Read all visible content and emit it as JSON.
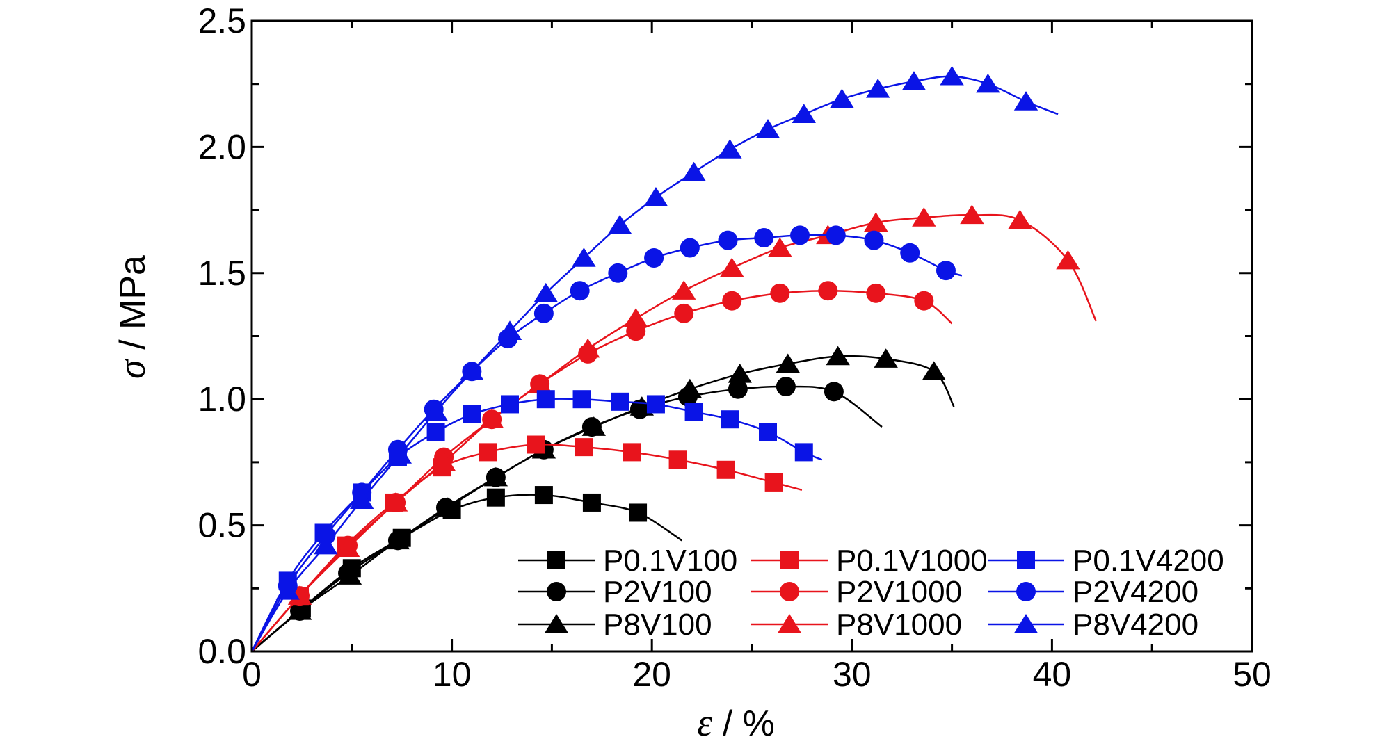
{
  "chart_data": {
    "type": "line",
    "title": "",
    "xlabel": {
      "symbol": "ε",
      "unit": " / %"
    },
    "ylabel": {
      "symbol": "σ",
      "unit": " / MPa"
    },
    "xlim": [
      0,
      50
    ],
    "ylim": [
      0,
      2.5
    ],
    "xticks": [
      "0",
      "10",
      "20",
      "30",
      "40",
      "50"
    ],
    "yticks": [
      "0.0",
      "0.5",
      "1.0",
      "1.5",
      "2.0",
      "2.5"
    ],
    "grid": false,
    "legend": {
      "position": "bottom-right",
      "columns": 3
    },
    "series": [
      {
        "name": "P0.1V100",
        "color": "#000000",
        "marker": "square",
        "x": [
          0,
          2.5,
          5,
          7.5,
          10,
          12.2,
          14.6,
          17,
          19.3,
          21.5
        ],
        "y": [
          0,
          0.17,
          0.33,
          0.45,
          0.56,
          0.61,
          0.62,
          0.59,
          0.55,
          0.44
        ]
      },
      {
        "name": "P2V100",
        "color": "#000000",
        "marker": "circle",
        "x": [
          0,
          2.4,
          4.8,
          7.3,
          9.7,
          12.2,
          14.6,
          17,
          19.4,
          21.8,
          24.3,
          26.7,
          29.1,
          31.5
        ],
        "y": [
          0,
          0.16,
          0.31,
          0.44,
          0.57,
          0.69,
          0.8,
          0.89,
          0.96,
          1.01,
          1.04,
          1.05,
          1.03,
          0.89
        ]
      },
      {
        "name": "P8V100",
        "color": "#000000",
        "marker": "triangle",
        "x": [
          0,
          2.4,
          4.9,
          7.3,
          9.8,
          12.2,
          14.6,
          17.1,
          19.5,
          21.9,
          24.4,
          26.8,
          29.3,
          31.7,
          34.1,
          35.1
        ],
        "y": [
          0,
          0.16,
          0.3,
          0.44,
          0.57,
          0.69,
          0.8,
          0.89,
          0.97,
          1.04,
          1.1,
          1.14,
          1.17,
          1.16,
          1.11,
          0.97
        ]
      },
      {
        "name": "P0.1V1000",
        "color": "#e8141c",
        "marker": "square",
        "x": [
          0,
          2.4,
          4.7,
          7.1,
          9.5,
          11.8,
          14.2,
          16.6,
          19,
          21.3,
          23.7,
          26.1,
          27.5
        ],
        "y": [
          0,
          0.22,
          0.42,
          0.59,
          0.73,
          0.79,
          0.82,
          0.81,
          0.79,
          0.76,
          0.72,
          0.67,
          0.64
        ]
      },
      {
        "name": "P2V1000",
        "color": "#e8141c",
        "marker": "circle",
        "x": [
          0,
          2.4,
          4.8,
          7.2,
          9.6,
          12,
          14.4,
          16.8,
          19.2,
          21.6,
          24,
          26.4,
          28.8,
          31.2,
          33.6,
          35.0
        ],
        "y": [
          0,
          0.22,
          0.42,
          0.59,
          0.77,
          0.92,
          1.06,
          1.18,
          1.27,
          1.34,
          1.39,
          1.42,
          1.43,
          1.42,
          1.39,
          1.3
        ]
      },
      {
        "name": "P8V1000",
        "color": "#e8141c",
        "marker": "triangle",
        "x": [
          0,
          2.4,
          4.8,
          7.2,
          9.6,
          12,
          14.4,
          16.8,
          19.2,
          21.6,
          24,
          26.4,
          28.8,
          31.2,
          33.6,
          36,
          38.4,
          40.8,
          42.2
        ],
        "y": [
          0,
          0.22,
          0.41,
          0.59,
          0.75,
          0.92,
          1.06,
          1.2,
          1.32,
          1.43,
          1.52,
          1.6,
          1.65,
          1.7,
          1.72,
          1.73,
          1.71,
          1.55,
          1.31
        ]
      },
      {
        "name": "P0.1V4200",
        "color": "#0a14e6",
        "marker": "square",
        "x": [
          0,
          1.8,
          3.6,
          5.5,
          7.3,
          9.2,
          11,
          12.9,
          14.7,
          16.5,
          18.4,
          20.2,
          22.1,
          23.9,
          25.8,
          27.6,
          28.5
        ],
        "y": [
          0,
          0.28,
          0.47,
          0.63,
          0.77,
          0.87,
          0.94,
          0.98,
          1.0,
          1.0,
          0.99,
          0.98,
          0.95,
          0.92,
          0.87,
          0.79,
          0.76
        ]
      },
      {
        "name": "P2V4200",
        "color": "#0a14e6",
        "marker": "circle",
        "x": [
          0,
          1.8,
          3.7,
          5.5,
          7.3,
          9.1,
          11,
          12.8,
          14.6,
          16.4,
          18.3,
          20.1,
          21.9,
          23.8,
          25.6,
          27.4,
          29.2,
          31.1,
          32.9,
          34.7,
          35.5
        ],
        "y": [
          0,
          0.26,
          0.46,
          0.63,
          0.8,
          0.96,
          1.11,
          1.24,
          1.34,
          1.43,
          1.5,
          1.56,
          1.6,
          1.63,
          1.64,
          1.65,
          1.65,
          1.63,
          1.58,
          1.51,
          1.49
        ]
      },
      {
        "name": "P8V4200",
        "color": "#0a14e6",
        "marker": "triangle",
        "x": [
          0,
          1.8,
          3.7,
          5.5,
          7.4,
          9.2,
          11,
          12.9,
          14.7,
          16.6,
          18.4,
          20.2,
          22.1,
          23.9,
          25.8,
          27.6,
          29.5,
          31.3,
          33.1,
          35,
          36.8,
          38.7,
          40.3
        ],
        "y": [
          0,
          0.24,
          0.42,
          0.6,
          0.78,
          0.95,
          1.11,
          1.27,
          1.42,
          1.56,
          1.69,
          1.8,
          1.9,
          1.99,
          2.07,
          2.13,
          2.19,
          2.23,
          2.26,
          2.28,
          2.25,
          2.18,
          2.13
        ]
      }
    ]
  }
}
